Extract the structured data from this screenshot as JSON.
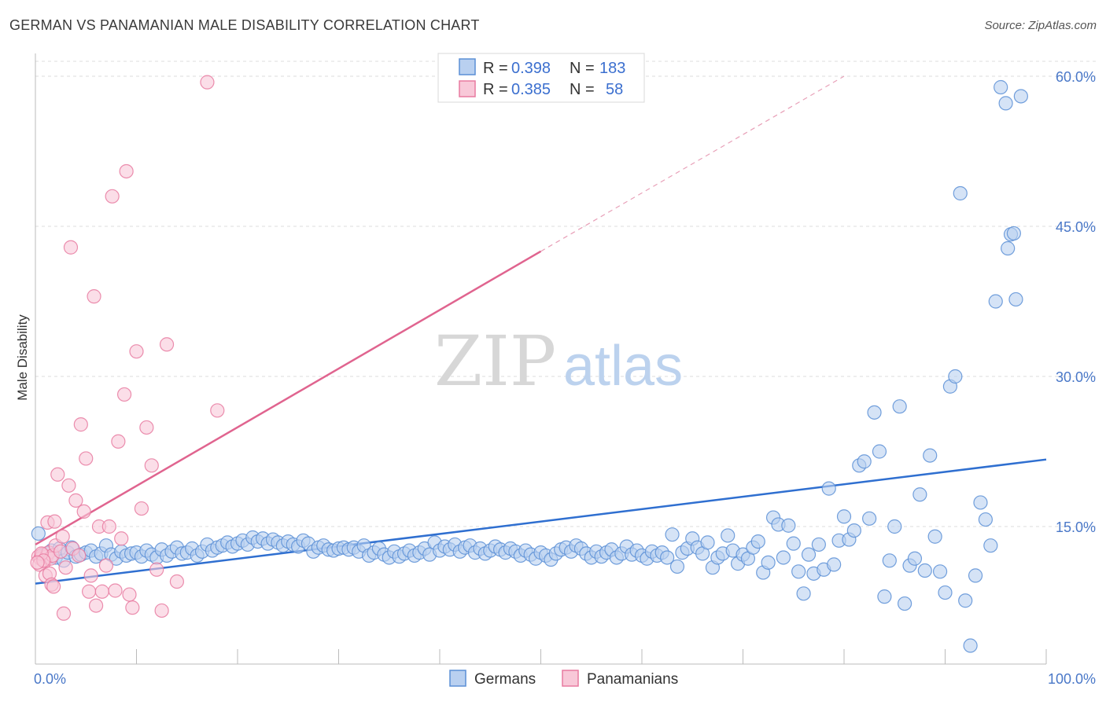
{
  "title": "GERMAN VS PANAMANIAN MALE DISABILITY CORRELATION CHART",
  "source": "Source: ZipAtlas.com",
  "watermark": {
    "zip": "ZIP",
    "atlas": "atlas"
  },
  "chart_data": {
    "type": "scatter",
    "ylabel": "Male Disability",
    "xlim": [
      0,
      100
    ],
    "ylim": [
      0,
      65
    ],
    "x_tick_labels": [
      {
        "value": 0,
        "label": "0.0%"
      },
      {
        "value": 100,
        "label": "100.0%"
      }
    ],
    "y_tick_labels": [
      {
        "value": 15,
        "label": "15.0%"
      },
      {
        "value": 30,
        "label": "30.0%"
      },
      {
        "value": 45,
        "label": "45.0%"
      },
      {
        "value": 60,
        "label": "60.0%"
      }
    ],
    "grid": "horizontal dashed",
    "legend_position": "top-center",
    "series": [
      {
        "name": "Germans",
        "color": "#5b8fd6",
        "fill": "#b9d0f0",
        "R": "0.398",
        "N": "183",
        "trend": {
          "x": [
            0,
            100
          ],
          "y": [
            9.3,
            21.7
          ]
        },
        "points": [
          [
            0.3,
            14.3
          ],
          [
            0.8,
            12.1
          ],
          [
            1.2,
            12.3
          ],
          [
            1.6,
            12.6
          ],
          [
            2.0,
            11.9
          ],
          [
            2.4,
            12.8
          ],
          [
            2.8,
            11.6
          ],
          [
            3.2,
            12.4
          ],
          [
            3.6,
            12.9
          ],
          [
            4.0,
            12.0
          ],
          [
            4.5,
            12.2
          ],
          [
            5.0,
            12.4
          ],
          [
            5.5,
            12.6
          ],
          [
            6.0,
            12.0
          ],
          [
            6.5,
            12.3
          ],
          [
            7.0,
            13.1
          ],
          [
            7.5,
            12.2
          ],
          [
            8.0,
            11.8
          ],
          [
            8.5,
            12.5
          ],
          [
            9.0,
            12.1
          ],
          [
            9.5,
            12.3
          ],
          [
            10.0,
            12.4
          ],
          [
            10.5,
            12.0
          ],
          [
            11.0,
            12.6
          ],
          [
            11.5,
            12.2
          ],
          [
            12.0,
            11.9
          ],
          [
            12.5,
            12.7
          ],
          [
            13.0,
            12.1
          ],
          [
            13.5,
            12.5
          ],
          [
            14.0,
            12.9
          ],
          [
            14.5,
            12.3
          ],
          [
            15.0,
            12.4
          ],
          [
            15.5,
            12.8
          ],
          [
            16.0,
            12.1
          ],
          [
            16.5,
            12.5
          ],
          [
            17.0,
            13.2
          ],
          [
            17.5,
            12.6
          ],
          [
            18.0,
            12.9
          ],
          [
            18.5,
            13.1
          ],
          [
            19.0,
            13.4
          ],
          [
            19.5,
            13.0
          ],
          [
            20.0,
            13.3
          ],
          [
            20.5,
            13.6
          ],
          [
            21.0,
            13.2
          ],
          [
            21.5,
            13.9
          ],
          [
            22.0,
            13.5
          ],
          [
            22.5,
            13.8
          ],
          [
            23.0,
            13.3
          ],
          [
            23.5,
            13.7
          ],
          [
            24.0,
            13.4
          ],
          [
            24.5,
            13.1
          ],
          [
            25.0,
            13.5
          ],
          [
            25.5,
            13.2
          ],
          [
            26.0,
            13.0
          ],
          [
            26.5,
            13.6
          ],
          [
            27.0,
            13.3
          ],
          [
            27.5,
            12.5
          ],
          [
            28.0,
            12.9
          ],
          [
            28.5,
            13.1
          ],
          [
            29.0,
            12.7
          ],
          [
            29.5,
            12.6
          ],
          [
            30.0,
            12.8
          ],
          [
            30.5,
            12.9
          ],
          [
            31.0,
            12.7
          ],
          [
            31.5,
            12.9
          ],
          [
            32.0,
            12.5
          ],
          [
            32.5,
            13.1
          ],
          [
            33.0,
            12.1
          ],
          [
            33.5,
            12.4
          ],
          [
            34.0,
            12.8
          ],
          [
            34.5,
            12.2
          ],
          [
            35.0,
            11.9
          ],
          [
            35.5,
            12.5
          ],
          [
            36.0,
            12.0
          ],
          [
            36.5,
            12.3
          ],
          [
            37.0,
            12.6
          ],
          [
            37.5,
            12.1
          ],
          [
            38.0,
            12.4
          ],
          [
            38.5,
            12.8
          ],
          [
            39.0,
            12.2
          ],
          [
            39.5,
            13.4
          ],
          [
            40.0,
            12.6
          ],
          [
            40.5,
            13.0
          ],
          [
            41.0,
            12.7
          ],
          [
            41.5,
            13.2
          ],
          [
            42.0,
            12.5
          ],
          [
            42.5,
            12.9
          ],
          [
            43.0,
            13.1
          ],
          [
            43.5,
            12.4
          ],
          [
            44.0,
            12.8
          ],
          [
            44.5,
            12.3
          ],
          [
            45.0,
            12.6
          ],
          [
            45.5,
            13.0
          ],
          [
            46.0,
            12.7
          ],
          [
            46.5,
            12.4
          ],
          [
            47.0,
            12.8
          ],
          [
            47.5,
            12.5
          ],
          [
            48.0,
            12.1
          ],
          [
            48.5,
            12.6
          ],
          [
            49.0,
            12.2
          ],
          [
            49.5,
            11.8
          ],
          [
            50.0,
            12.4
          ],
          [
            50.5,
            12.1
          ],
          [
            51.0,
            11.7
          ],
          [
            51.5,
            12.3
          ],
          [
            52.0,
            12.7
          ],
          [
            52.5,
            12.9
          ],
          [
            53.0,
            12.5
          ],
          [
            53.5,
            13.1
          ],
          [
            54.0,
            12.8
          ],
          [
            54.5,
            12.3
          ],
          [
            55.0,
            11.9
          ],
          [
            55.5,
            12.5
          ],
          [
            56.0,
            12.0
          ],
          [
            56.5,
            12.4
          ],
          [
            57.0,
            12.7
          ],
          [
            57.5,
            11.9
          ],
          [
            58.0,
            12.3
          ],
          [
            58.5,
            13.0
          ],
          [
            59.0,
            12.2
          ],
          [
            59.5,
            12.6
          ],
          [
            60.0,
            12.1
          ],
          [
            60.5,
            11.8
          ],
          [
            61.0,
            12.5
          ],
          [
            61.5,
            12.1
          ],
          [
            62.0,
            12.4
          ],
          [
            62.5,
            11.9
          ],
          [
            63.0,
            14.2
          ],
          [
            63.5,
            11.0
          ],
          [
            64.0,
            12.4
          ],
          [
            64.5,
            12.8
          ],
          [
            65.0,
            13.8
          ],
          [
            65.5,
            12.9
          ],
          [
            66.0,
            12.3
          ],
          [
            66.5,
            13.4
          ],
          [
            67.0,
            10.9
          ],
          [
            67.5,
            11.9
          ],
          [
            68.0,
            12.3
          ],
          [
            68.5,
            14.1
          ],
          [
            69.0,
            12.6
          ],
          [
            69.5,
            11.3
          ],
          [
            70.0,
            12.2
          ],
          [
            70.5,
            11.8
          ],
          [
            71.0,
            12.9
          ],
          [
            71.5,
            13.5
          ],
          [
            72.0,
            10.4
          ],
          [
            72.5,
            11.4
          ],
          [
            73.0,
            15.9
          ],
          [
            73.5,
            15.2
          ],
          [
            74.0,
            11.9
          ],
          [
            74.5,
            15.1
          ],
          [
            75.0,
            13.3
          ],
          [
            75.5,
            10.5
          ],
          [
            76.0,
            8.3
          ],
          [
            76.5,
            12.2
          ],
          [
            77.0,
            10.3
          ],
          [
            77.5,
            13.2
          ],
          [
            78.0,
            10.7
          ],
          [
            78.5,
            18.8
          ],
          [
            79.0,
            11.2
          ],
          [
            79.5,
            13.6
          ],
          [
            80.0,
            16.0
          ],
          [
            80.5,
            13.7
          ],
          [
            81.0,
            14.6
          ],
          [
            81.5,
            21.1
          ],
          [
            82.0,
            21.5
          ],
          [
            82.5,
            15.8
          ],
          [
            83.0,
            26.4
          ],
          [
            83.5,
            22.5
          ],
          [
            84.0,
            8.0
          ],
          [
            84.5,
            11.6
          ],
          [
            85.0,
            15.0
          ],
          [
            85.5,
            27.0
          ],
          [
            86.0,
            7.3
          ],
          [
            86.5,
            11.1
          ],
          [
            87.0,
            11.8
          ],
          [
            87.5,
            18.2
          ],
          [
            88.0,
            10.6
          ],
          [
            88.5,
            22.1
          ],
          [
            89.0,
            14.0
          ],
          [
            89.5,
            10.5
          ],
          [
            90.0,
            8.4
          ],
          [
            90.5,
            29.0
          ],
          [
            91.0,
            30.0
          ],
          [
            91.5,
            48.3
          ],
          [
            92.0,
            7.6
          ],
          [
            92.5,
            3.1
          ],
          [
            93.0,
            10.1
          ],
          [
            93.5,
            17.4
          ],
          [
            94.0,
            15.7
          ],
          [
            94.5,
            13.1
          ],
          [
            95.0,
            37.5
          ],
          [
            95.5,
            58.9
          ],
          [
            96.0,
            57.3
          ],
          [
            96.2,
            42.8
          ],
          [
            96.5,
            44.2
          ],
          [
            96.8,
            44.3
          ],
          [
            97.0,
            37.7
          ],
          [
            97.5,
            58.0
          ]
        ]
      },
      {
        "name": "Panamanians",
        "color": "#e87aa0",
        "fill": "#f8c8d8",
        "R": "0.385",
        "N": "58",
        "trend": {
          "x": [
            0,
            50
          ],
          "y": [
            13.2,
            42.5
          ]
        },
        "trend_extension": {
          "x": [
            50,
            80
          ],
          "y": [
            42.5,
            60.0
          ]
        },
        "points": [
          [
            0.3,
            12.0
          ],
          [
            0.5,
            11.8
          ],
          [
            0.7,
            12.2
          ],
          [
            0.9,
            11.5
          ],
          [
            1.1,
            12.0
          ],
          [
            1.3,
            12.4
          ],
          [
            1.5,
            11.8
          ],
          [
            1.7,
            12.1
          ],
          [
            0.4,
            11.2
          ],
          [
            0.6,
            12.3
          ],
          [
            0.8,
            11.6
          ],
          [
            1.0,
            10.1
          ],
          [
            1.2,
            15.4
          ],
          [
            1.4,
            10.3
          ],
          [
            1.6,
            9.2
          ],
          [
            1.8,
            9.0
          ],
          [
            2.0,
            13.1
          ],
          [
            2.2,
            20.2
          ],
          [
            2.5,
            12.5
          ],
          [
            2.8,
            6.3
          ],
          [
            3.0,
            10.9
          ],
          [
            3.3,
            19.1
          ],
          [
            3.5,
            42.9
          ],
          [
            3.7,
            12.8
          ],
          [
            4.0,
            17.6
          ],
          [
            4.3,
            12.1
          ],
          [
            4.5,
            25.2
          ],
          [
            4.8,
            16.5
          ],
          [
            5.0,
            21.8
          ],
          [
            5.3,
            8.5
          ],
          [
            5.5,
            10.1
          ],
          [
            5.8,
            38.0
          ],
          [
            6.0,
            7.1
          ],
          [
            6.3,
            15.0
          ],
          [
            6.6,
            8.5
          ],
          [
            7.0,
            11.1
          ],
          [
            7.3,
            15.0
          ],
          [
            7.6,
            48.0
          ],
          [
            7.9,
            8.6
          ],
          [
            8.2,
            23.5
          ],
          [
            8.5,
            13.8
          ],
          [
            8.8,
            28.2
          ],
          [
            9.0,
            50.5
          ],
          [
            9.3,
            8.2
          ],
          [
            9.6,
            6.9
          ],
          [
            10.0,
            32.5
          ],
          [
            10.5,
            16.8
          ],
          [
            11.0,
            24.9
          ],
          [
            11.5,
            21.1
          ],
          [
            12.0,
            10.7
          ],
          [
            12.5,
            6.6
          ],
          [
            13.0,
            33.2
          ],
          [
            14.0,
            9.5
          ],
          [
            17.0,
            59.4
          ],
          [
            18.0,
            26.6
          ],
          [
            1.9,
            15.5
          ],
          [
            2.7,
            14.0
          ],
          [
            0.2,
            11.4
          ]
        ]
      }
    ]
  }
}
